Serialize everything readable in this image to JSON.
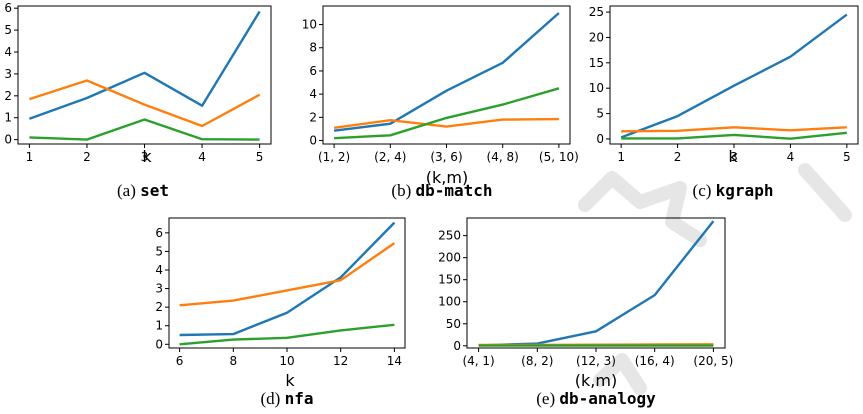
{
  "colors": {
    "blue": "#1f77b4",
    "orange": "#ff7f0e",
    "green": "#2ca02c",
    "watermark": "#e6e6e6"
  },
  "chart_data": [
    {
      "type": "line",
      "id": "set",
      "caption_prefix": "(a)",
      "caption_name": "set",
      "xlabel": "k",
      "ylabel": "",
      "categories": [
        "1",
        "2",
        "3",
        "4",
        "5"
      ],
      "ylim": [
        -0.2,
        6.1
      ],
      "yticks": [
        0,
        1,
        2,
        3,
        4,
        5,
        6
      ],
      "grid": false,
      "series": [
        {
          "color": "#1f77b4",
          "values": [
            0.95,
            1.9,
            3.05,
            1.55,
            5.85
          ]
        },
        {
          "color": "#ff7f0e",
          "values": [
            1.85,
            2.7,
            1.6,
            0.62,
            2.05
          ]
        },
        {
          "color": "#2ca02c",
          "values": [
            0.1,
            0.0,
            0.92,
            0.02,
            0.0
          ]
        }
      ]
    },
    {
      "type": "line",
      "id": "db-match",
      "caption_prefix": "(b)",
      "caption_name": "db-match",
      "xlabel": "(k,m)",
      "ylabel": "",
      "categories": [
        "(1, 2)",
        "(2, 4)",
        "(3, 6)",
        "(4, 8)",
        "(5, 10)"
      ],
      "ylim": [
        -0.3,
        11.6
      ],
      "yticks": [
        0,
        2,
        4,
        6,
        8,
        10
      ],
      "grid": false,
      "series": [
        {
          "color": "#1f77b4",
          "values": [
            0.85,
            1.45,
            4.3,
            6.7,
            11.0
          ]
        },
        {
          "color": "#ff7f0e",
          "values": [
            1.1,
            1.75,
            1.2,
            1.8,
            1.85
          ]
        },
        {
          "color": "#2ca02c",
          "values": [
            0.2,
            0.45,
            1.95,
            3.1,
            4.5
          ]
        }
      ]
    },
    {
      "type": "line",
      "id": "kgraph",
      "caption_prefix": "(c)",
      "caption_name": "kgraph",
      "xlabel": "k",
      "ylabel": "",
      "categories": [
        "1",
        "2",
        "3",
        "4",
        "5"
      ],
      "ylim": [
        -1,
        26.2
      ],
      "yticks": [
        0,
        5,
        10,
        15,
        20,
        25
      ],
      "grid": false,
      "series": [
        {
          "color": "#1f77b4",
          "values": [
            0.3,
            4.5,
            10.5,
            16.2,
            24.5
          ]
        },
        {
          "color": "#ff7f0e",
          "values": [
            1.5,
            1.6,
            2.3,
            1.7,
            2.3
          ]
        },
        {
          "color": "#2ca02c",
          "values": [
            0.1,
            0.1,
            0.8,
            0.05,
            1.2
          ]
        }
      ]
    },
    {
      "type": "line",
      "id": "nfa",
      "caption_prefix": "(d)",
      "caption_name": "nfa",
      "xlabel": "k",
      "ylabel": "",
      "categories": [
        "6",
        "8",
        "10",
        "12",
        "14"
      ],
      "ylim": [
        -0.2,
        6.8
      ],
      "yticks": [
        0,
        1,
        2,
        3,
        4,
        5,
        6
      ],
      "grid": false,
      "series": [
        {
          "color": "#1f77b4",
          "values": [
            0.5,
            0.55,
            1.7,
            3.6,
            6.55
          ]
        },
        {
          "color": "#ff7f0e",
          "values": [
            2.1,
            2.35,
            2.9,
            3.45,
            5.45
          ]
        },
        {
          "color": "#2ca02c",
          "values": [
            0.0,
            0.25,
            0.35,
            0.75,
            1.05
          ]
        }
      ]
    },
    {
      "type": "line",
      "id": "db-analogy",
      "caption_prefix": "(e)",
      "caption_name": "db-analogy",
      "xlabel": "(k,m)",
      "ylabel": "",
      "categories": [
        "(4, 1)",
        "(8, 2)",
        "(12, 3)",
        "(16, 4)",
        "(20, 5)"
      ],
      "ylim": [
        -5,
        290
      ],
      "yticks": [
        0,
        50,
        100,
        150,
        200,
        250
      ],
      "grid": false,
      "series": [
        {
          "color": "#1f77b4",
          "values": [
            1,
            5,
            33,
            115,
            283
          ]
        },
        {
          "color": "#ff7f0e",
          "values": [
            2,
            2,
            2.5,
            3,
            3.5
          ]
        },
        {
          "color": "#2ca02c",
          "values": [
            0.5,
            0.5,
            0.5,
            0.5,
            0.5
          ]
        }
      ]
    }
  ]
}
